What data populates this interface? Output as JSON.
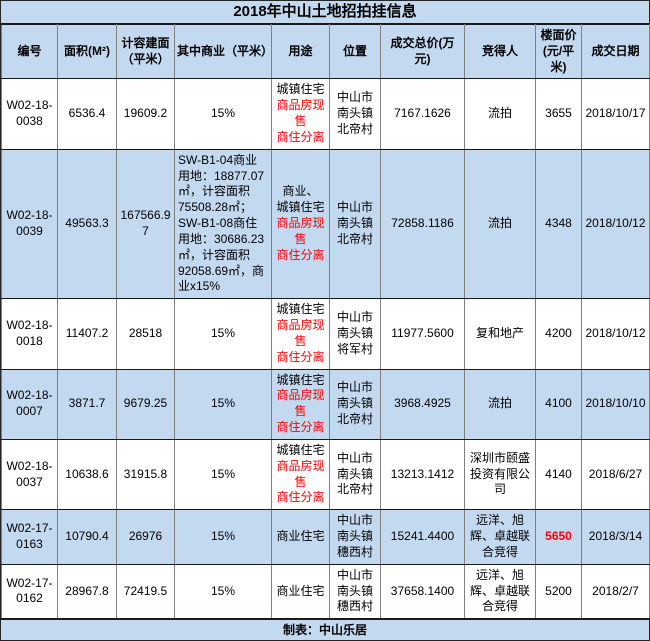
{
  "title": "2018年中山土地招拍挂信息",
  "footer": "制表：中山乐居",
  "colors": {
    "band_blue": "#c3d9f0",
    "text_red": "#ff0000",
    "grid_vertical": "#7f7f7f",
    "grid_horizontal": "#1a1a1a"
  },
  "table": {
    "headers": [
      "编号",
      "面积(M²)",
      "计容建面（平米）",
      "其中商业（平米）",
      "用途",
      "位置",
      "成交总价(万元)",
      "竞得人",
      "楼面价(元/平米)",
      "成交日期"
    ],
    "rows": [
      {
        "id": "W02-18-0038",
        "area": "6536.4",
        "floor_area": "19609.2",
        "commercial": "15%",
        "commercial_align": "center",
        "usage": [
          {
            "text": "城镇住宅",
            "red": false
          },
          {
            "text": "商品房现售",
            "red": true
          },
          {
            "text": "商住分离",
            "red": true
          }
        ],
        "location": "中山市南头镇北帝村",
        "total_price": "7167.1626",
        "winner": "流拍",
        "unit_price": "3655",
        "unit_price_red": false,
        "date": "2018/10/17"
      },
      {
        "id": "W02-18-0039",
        "area": "49563.3",
        "floor_area": "167566.97",
        "commercial": "SW-B1-04商业用地：18877.07㎡，计容面积75508.28㎡；\nSW-B1-08商住用地：30686.23㎡，计容面积92058.69㎡，商业x15%",
        "commercial_align": "left",
        "usage": [
          {
            "text": "商业、",
            "red": false
          },
          {
            "text": "城镇住宅",
            "red": false
          },
          {
            "text": "商品房现售",
            "red": true
          },
          {
            "text": "商住分离",
            "red": true
          }
        ],
        "location": "中山市南头镇北帝村",
        "total_price": "72858.1186",
        "winner": "流拍",
        "unit_price": "4348",
        "unit_price_red": false,
        "date": "2018/10/12"
      },
      {
        "id": "W02-18-0018",
        "area": "11407.2",
        "floor_area": "28518",
        "commercial": "15%",
        "commercial_align": "center",
        "usage": [
          {
            "text": "城镇住宅",
            "red": false
          },
          {
            "text": "商品房现售",
            "red": true
          },
          {
            "text": "商住分离",
            "red": true
          }
        ],
        "location": "中山市南头镇将军村",
        "total_price": "11977.5600",
        "winner": "复和地产",
        "unit_price": "4200",
        "unit_price_red": false,
        "date": "2018/10/12"
      },
      {
        "id": "W02-18-0007",
        "area": "3871.7",
        "floor_area": "9679.25",
        "commercial": "15%",
        "commercial_align": "center",
        "usage": [
          {
            "text": "城镇住宅",
            "red": false
          },
          {
            "text": "商品房现售",
            "red": true
          },
          {
            "text": "商住分离",
            "red": true
          }
        ],
        "location": "中山市南头镇北帝村",
        "total_price": "3968.4925",
        "winner": "流拍",
        "unit_price": "4100",
        "unit_price_red": false,
        "date": "2018/10/10"
      },
      {
        "id": "W02-18-0037",
        "area": "10638.6",
        "floor_area": "31915.8",
        "commercial": "15%",
        "commercial_align": "center",
        "usage": [
          {
            "text": "城镇住宅",
            "red": false
          },
          {
            "text": "商品房现售",
            "red": true
          },
          {
            "text": "商住分离",
            "red": true
          }
        ],
        "location": "中山市南头镇北帝村",
        "total_price": "13213.1412",
        "winner": "深圳市颐盛投资有限公司",
        "unit_price": "4140",
        "unit_price_red": false,
        "date": "2018/6/27"
      },
      {
        "id": "W02-17-0163",
        "area": "10790.4",
        "floor_area": "26976",
        "commercial": "15%",
        "commercial_align": "center",
        "usage": [
          {
            "text": "商业住宅",
            "red": false
          }
        ],
        "location": "中山市南头镇穗西村",
        "total_price": "15241.4400",
        "winner": "远洋、旭辉、卓越联合竞得",
        "unit_price": "5650",
        "unit_price_red": true,
        "date": "2018/3/14"
      },
      {
        "id": "W02-17-0162",
        "area": "28967.8",
        "floor_area": "72419.5",
        "commercial": "15%",
        "commercial_align": "center",
        "usage": [
          {
            "text": "商业住宅",
            "red": false
          }
        ],
        "location": "中山市南头镇穗西村",
        "total_price": "37658.1400",
        "winner": "远洋、旭辉、卓越联合竞得",
        "unit_price": "5200",
        "unit_price_red": false,
        "date": "2018/2/7"
      }
    ]
  }
}
